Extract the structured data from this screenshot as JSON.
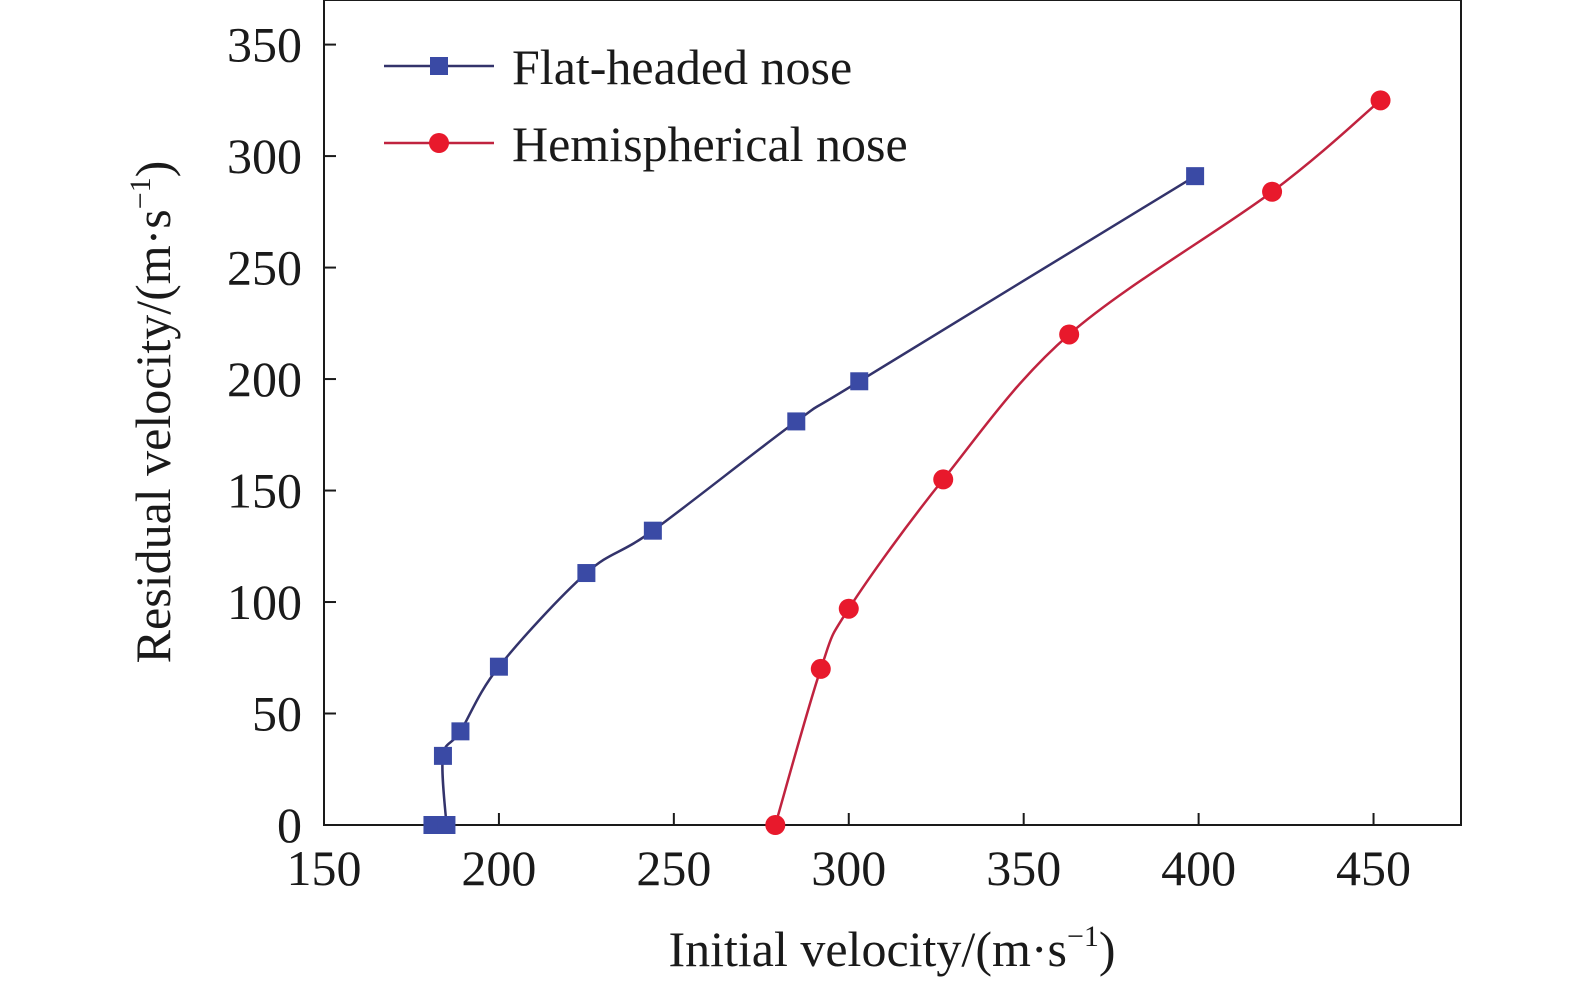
{
  "chart_data": {
    "type": "line",
    "xlabel": "Initial velocity/(m·s",
    "xlabel_sup": "−1",
    "xlabel_close": ")",
    "ylabel": "Residual velocity/(m·s",
    "ylabel_sup": "−1",
    "ylabel_close": ")",
    "xlim": [
      150,
      475
    ],
    "ylim": [
      0,
      370
    ],
    "xticks": [
      150,
      200,
      250,
      300,
      350,
      400,
      450
    ],
    "yticks": [
      0,
      50,
      100,
      150,
      200,
      250,
      300,
      350
    ],
    "xtick_labels": [
      "150",
      "200",
      "250",
      "300",
      "350",
      "400",
      "450"
    ],
    "ytick_labels": [
      "0",
      "50",
      "100",
      "150",
      "200",
      "250",
      "300",
      "350"
    ],
    "grid": false,
    "legend_position": "top-left",
    "series": [
      {
        "name": "Flat-headed nose",
        "color": "#3a4aa5",
        "line_color": "#33336b",
        "marker": "square",
        "points": [
          [
            181,
            0
          ],
          [
            184,
            0
          ],
          [
            185,
            0
          ],
          [
            184,
            31
          ],
          [
            189,
            42
          ],
          [
            200,
            71
          ],
          [
            225,
            113
          ],
          [
            244,
            132
          ],
          [
            285,
            181
          ],
          [
            303,
            199
          ],
          [
            399,
            291
          ]
        ]
      },
      {
        "name": "Hemispherical nose",
        "color": "#e8192c",
        "line_color": "#c0233f",
        "marker": "circle",
        "points": [
          [
            279,
            0
          ],
          [
            292,
            70
          ],
          [
            300,
            97
          ],
          [
            327,
            155
          ],
          [
            363,
            220
          ],
          [
            421,
            284
          ],
          [
            452,
            325
          ]
        ]
      }
    ]
  }
}
